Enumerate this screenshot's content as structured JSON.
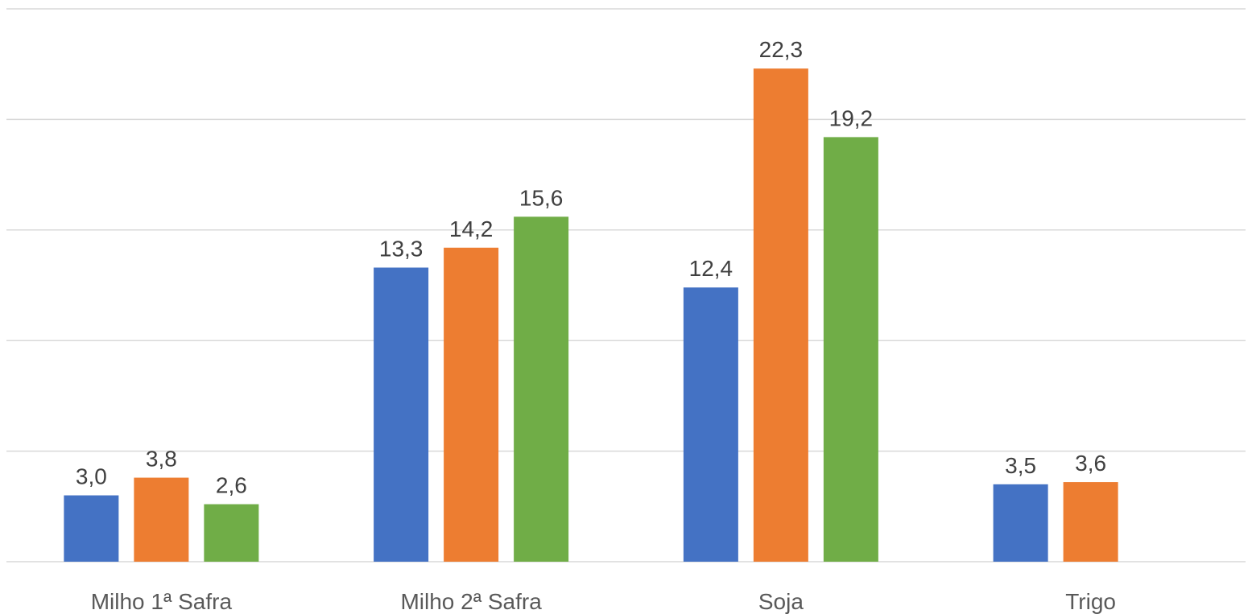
{
  "chart_data": {
    "type": "bar",
    "categories": [
      "Milho 1ª Safra",
      "Milho 2ª Safra",
      "Soja",
      "Trigo"
    ],
    "series": [
      {
        "values": [
          3.0,
          13.3,
          12.4,
          3.5
        ],
        "labels": [
          "3,0",
          "13,3",
          "12,4",
          "3,5"
        ],
        "color": "#4472c4"
      },
      {
        "values": [
          3.8,
          14.2,
          22.3,
          3.6
        ],
        "labels": [
          "3,8",
          "14,2",
          "22,3",
          "3,6"
        ],
        "color": "#ed7d31"
      },
      {
        "values": [
          2.6,
          15.6,
          19.2,
          null
        ],
        "labels": [
          "2,6",
          "15,6",
          "19,2",
          ""
        ],
        "color": "#70ad47"
      }
    ],
    "title": "",
    "xlabel": "",
    "ylabel": "",
    "ylim": [
      0,
      25
    ],
    "gridlines": [
      0,
      5,
      10,
      15,
      20,
      25
    ],
    "grid": true,
    "legend": "none"
  }
}
